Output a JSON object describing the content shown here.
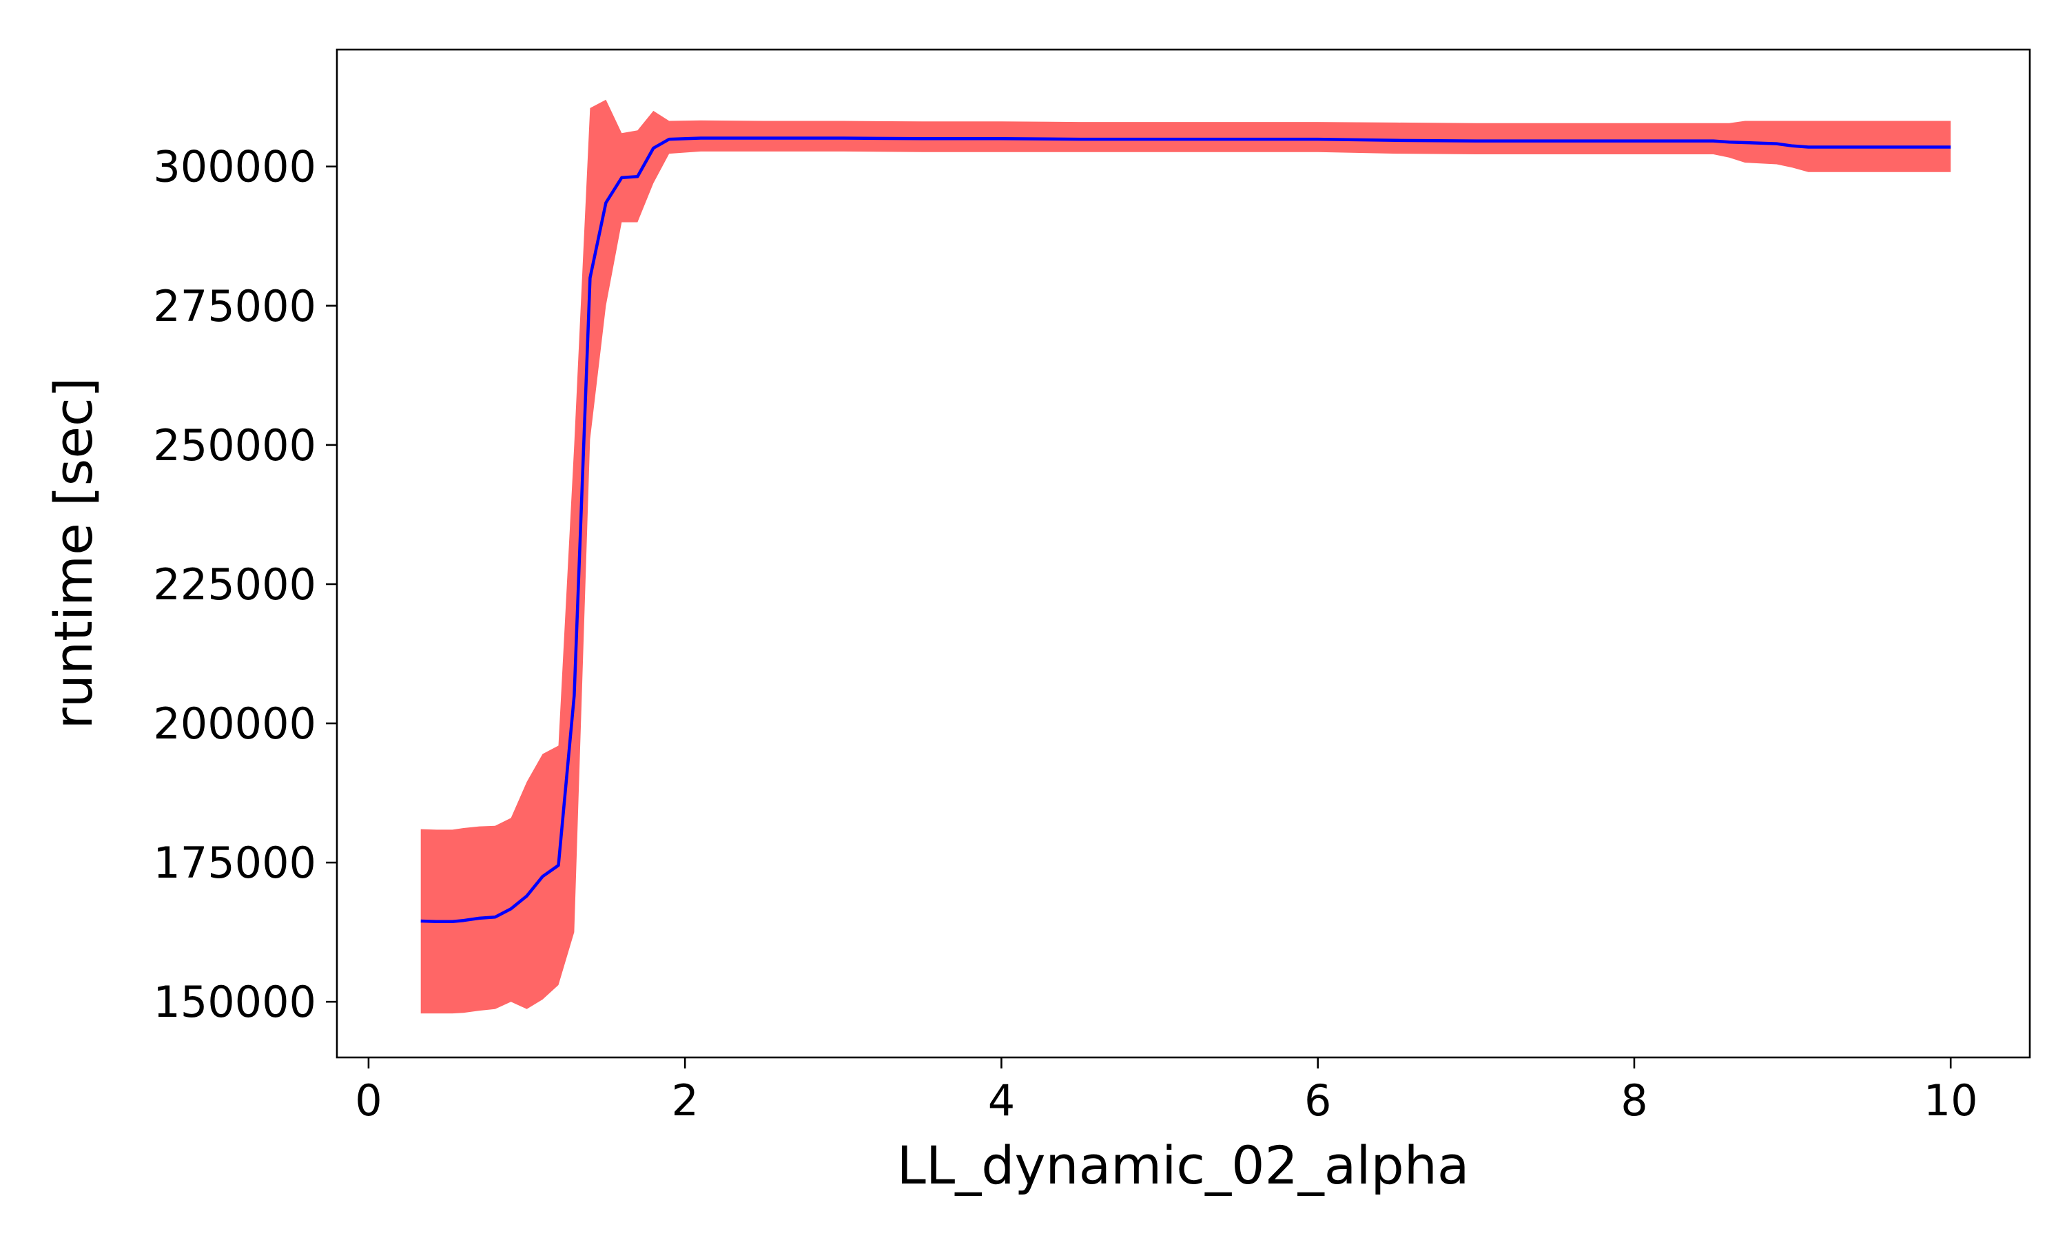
{
  "chart_data": {
    "type": "line",
    "title": "",
    "xlabel": "LL_dynamic_02_alpha",
    "ylabel": "runtime [sec]",
    "xlim": [
      -0.2,
      10.5
    ],
    "ylim": [
      140000,
      321000
    ],
    "xticks": [
      0,
      2,
      4,
      6,
      8,
      10
    ],
    "yticks": [
      150000,
      175000,
      200000,
      225000,
      250000,
      275000,
      300000
    ],
    "grid": false,
    "legend": "none",
    "colors": {
      "line": "#0000ff",
      "band": "#ff6666",
      "axes": "#000000"
    },
    "series": [
      {
        "x": [
          0.33,
          0.43,
          0.53,
          0.6,
          0.7,
          0.8,
          0.9,
          1.0,
          1.1,
          1.2,
          1.3,
          1.4,
          1.5,
          1.6,
          1.7,
          1.8,
          1.9,
          2.1,
          2.5,
          3.0,
          3.5,
          4.0,
          4.5,
          5.0,
          5.5,
          6.0,
          6.5,
          7.0,
          7.5,
          8.0,
          8.5,
          8.6,
          8.7,
          8.9,
          9.0,
          9.1,
          9.5,
          10.0
        ],
        "y": [
          164500,
          164400,
          164400,
          164600,
          165000,
          165200,
          166700,
          169000,
          172500,
          174500,
          205000,
          280000,
          293500,
          298000,
          298200,
          303300,
          304900,
          305100,
          305100,
          305100,
          305000,
          305000,
          304900,
          304900,
          304900,
          304900,
          304700,
          304600,
          304600,
          304600,
          304600,
          304400,
          304300,
          304100,
          303700,
          303500,
          303500,
          303500
        ],
        "upper": [
          181000,
          180900,
          180900,
          181200,
          181500,
          181600,
          183000,
          189500,
          194500,
          196000,
          250000,
          310500,
          312000,
          306000,
          306500,
          310000,
          308200,
          308300,
          308200,
          308200,
          308100,
          308100,
          308000,
          308000,
          308000,
          308000,
          307900,
          307800,
          307800,
          307800,
          307800,
          307800,
          308200,
          308200,
          308200,
          308200,
          308200,
          308200
        ],
        "lower": [
          147900,
          147900,
          147900,
          148000,
          148400,
          148700,
          150000,
          148700,
          150400,
          153000,
          162500,
          251000,
          275000,
          290000,
          290000,
          297000,
          302300,
          302700,
          302700,
          302700,
          302600,
          302600,
          302600,
          302600,
          302600,
          302600,
          302300,
          302200,
          302200,
          302200,
          302200,
          301600,
          300700,
          300400,
          299800,
          299000,
          299000,
          299000
        ]
      }
    ]
  }
}
